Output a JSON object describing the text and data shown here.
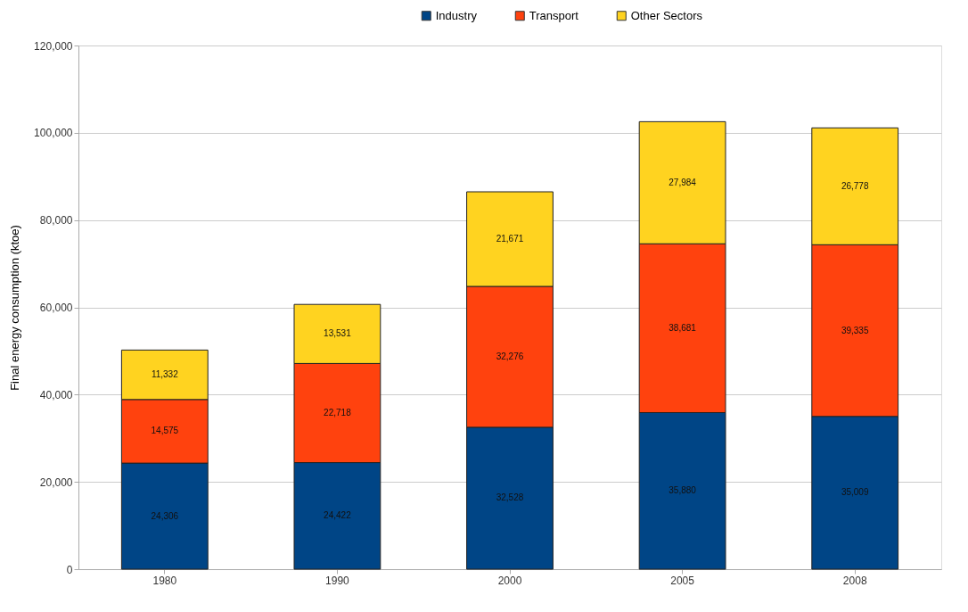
{
  "chart_data": {
    "type": "bar",
    "stacked": true,
    "ylabel": "Final energy consumption (ktoe)",
    "categories": [
      "1980",
      "1990",
      "2000",
      "2005",
      "2008"
    ],
    "series": [
      {
        "name": "Industry",
        "color": "#004586",
        "values": [
          24306,
          24422,
          32528,
          35880,
          35009
        ],
        "value_labels": [
          "24,306",
          "24,422",
          "32,528",
          "35,880",
          "35,009"
        ]
      },
      {
        "name": "Transport",
        "color": "#ff420e",
        "values": [
          14575,
          22718,
          32276,
          38681,
          39335
        ],
        "value_labels": [
          "14,575",
          "22,718",
          "32,276",
          "38,681",
          "39,335"
        ]
      },
      {
        "name": "Other Sectors",
        "color": "#ffd320",
        "values": [
          11332,
          13531,
          21671,
          27984,
          26778
        ],
        "value_labels": [
          "11,332",
          "13,531",
          "21,671",
          "27,984",
          "26,778"
        ]
      }
    ],
    "ylim": [
      0,
      120000
    ],
    "yticks": [
      0,
      {
        "value": 20000,
        "label": "20,000"
      },
      {
        "value": 40000,
        "label": "40,000"
      },
      {
        "value": 60000,
        "label": "60,000"
      },
      {
        "value": 80000,
        "label": "80,000"
      },
      {
        "value": 100000,
        "label": "100,000"
      },
      {
        "value": 120000,
        "label": "120,000"
      }
    ],
    "grid": "y",
    "legend": "top"
  }
}
